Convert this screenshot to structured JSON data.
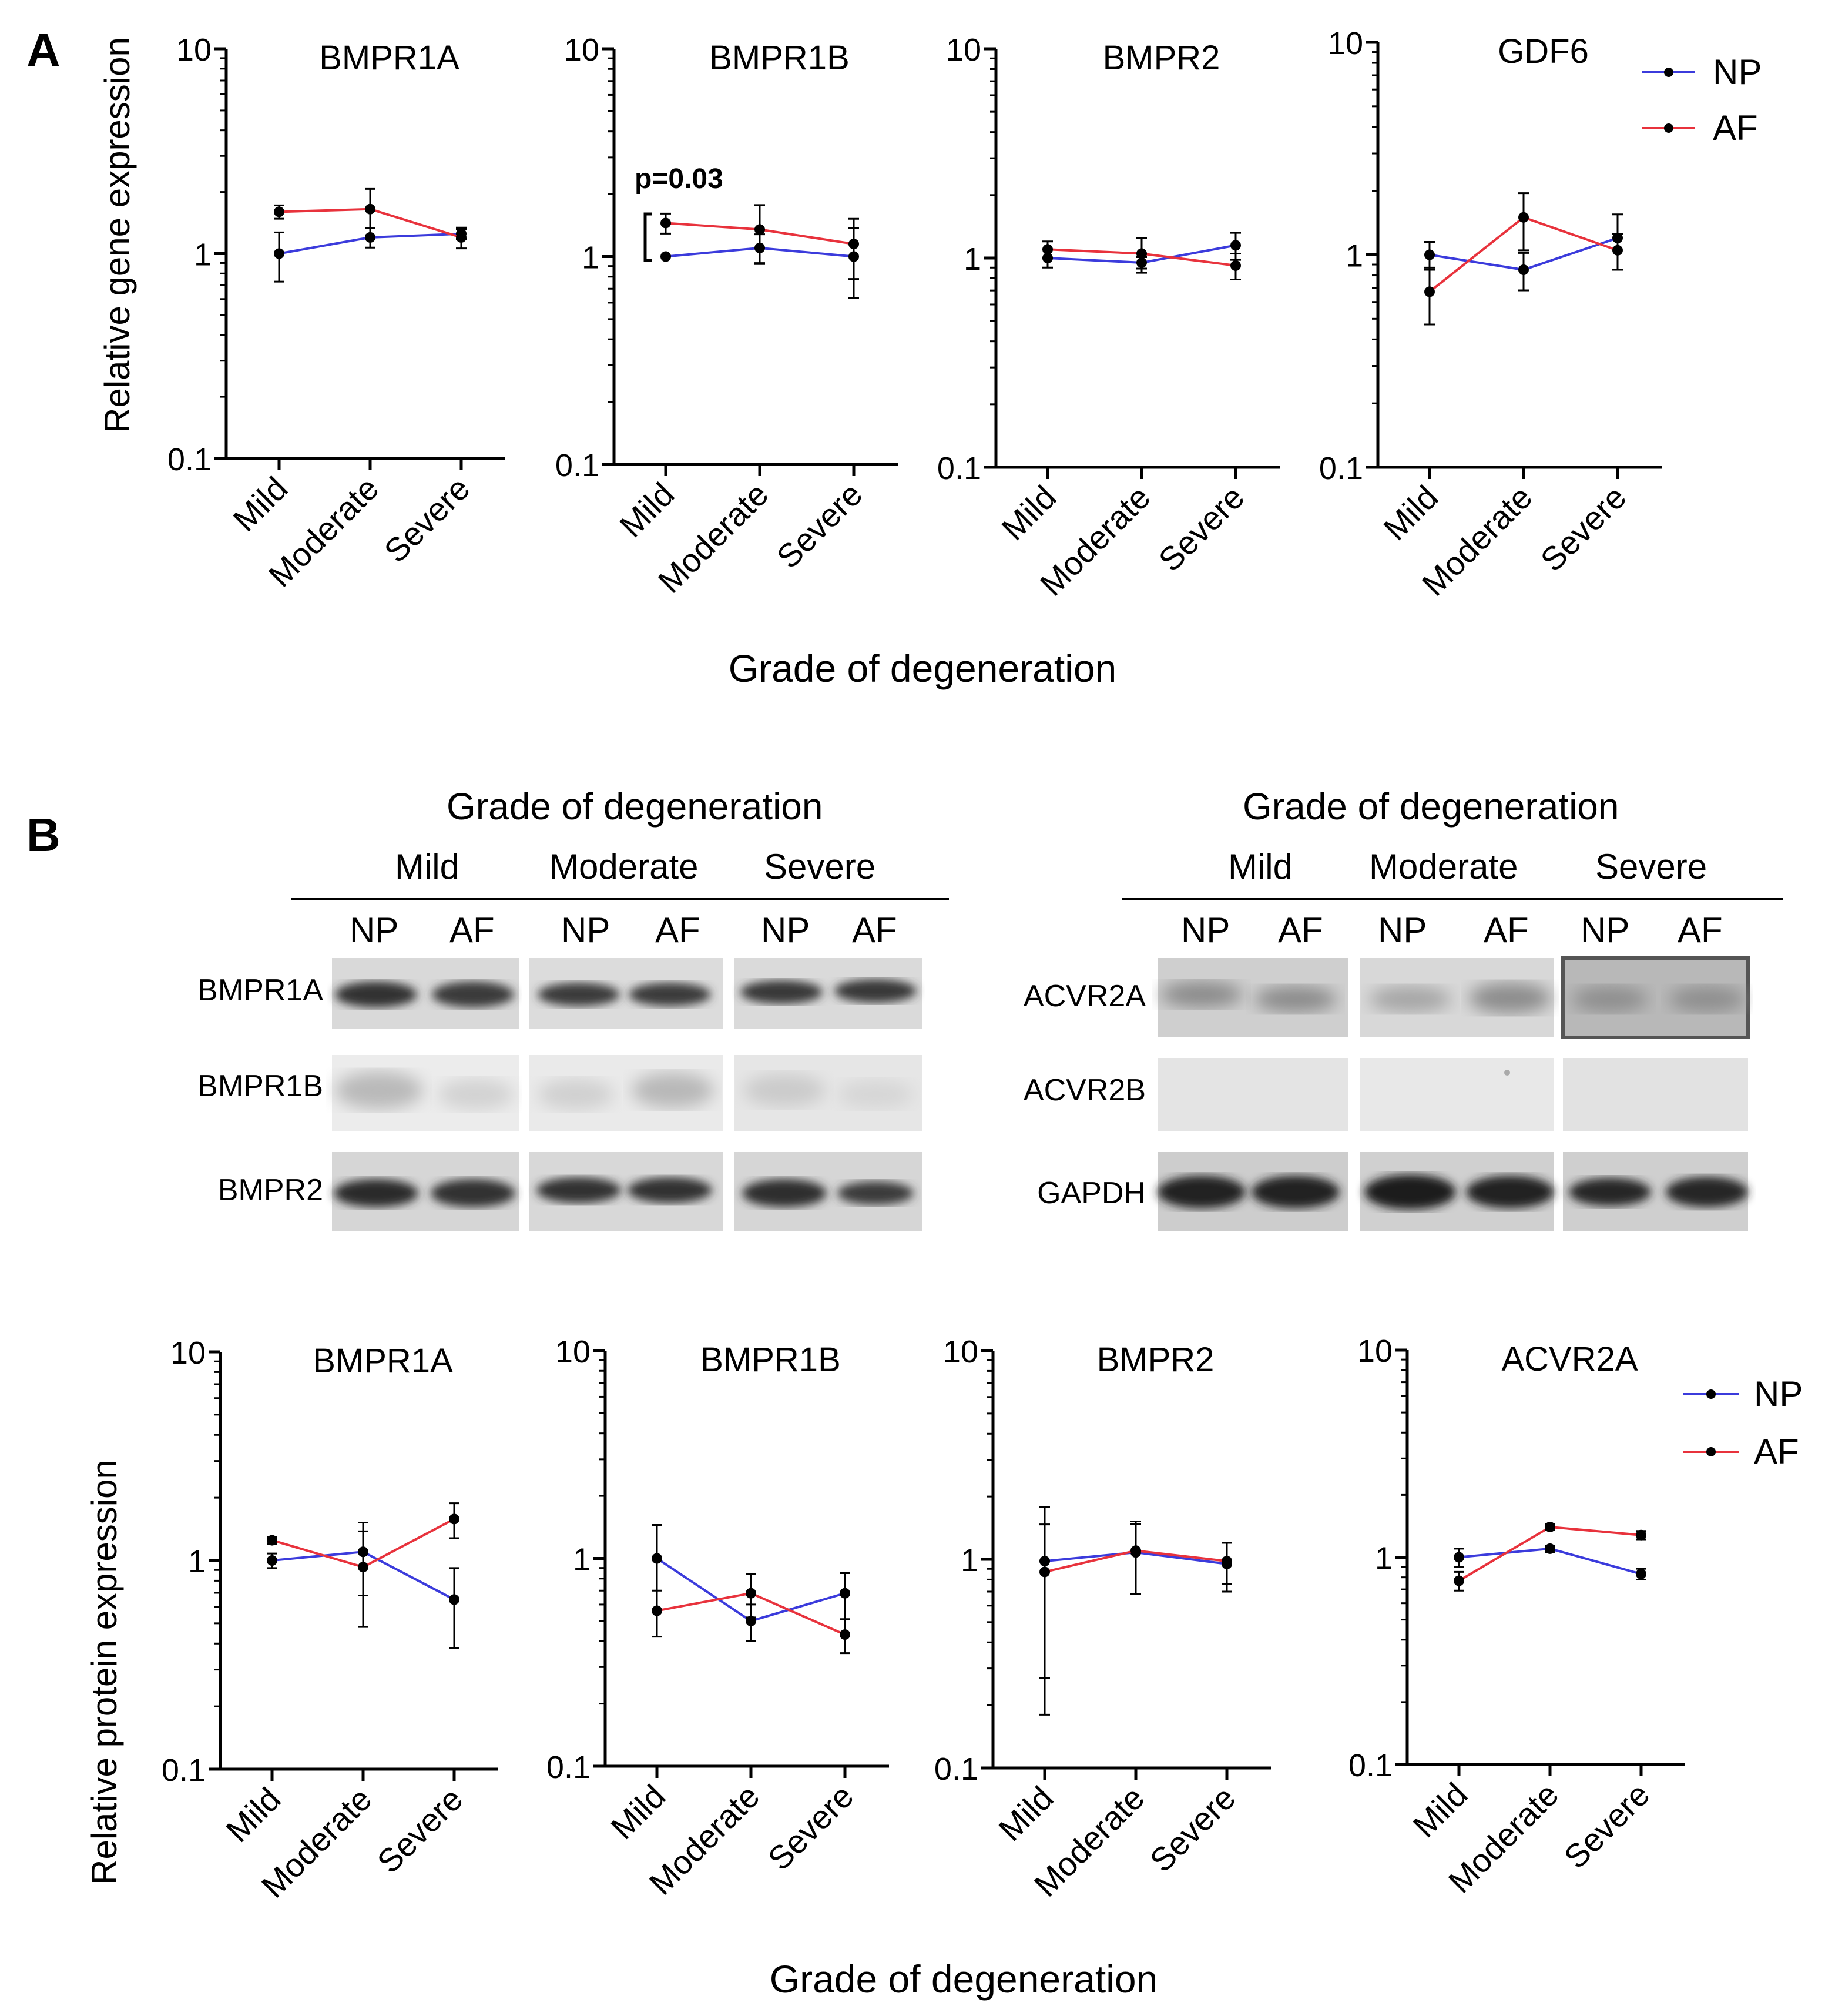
{
  "panel_labels": {
    "a": "A",
    "b": "B"
  },
  "panel_a": {
    "ylabel": "Relative gene expression",
    "xlabel": "Grade of degeneration",
    "legend": [
      "NP",
      "AF"
    ],
    "annotation": "p=0.03"
  },
  "panel_b_blots": {
    "left": {
      "title": "Grade of degeneration",
      "grades": [
        "Mild",
        "Moderate",
        "Severe"
      ],
      "lanes": [
        "NP",
        "AF",
        "NP",
        "AF",
        "NP",
        "AF"
      ],
      "rows": [
        "BMPR1A",
        "BMPR1B",
        "BMPR2"
      ]
    },
    "right": {
      "title": "Grade of degeneration",
      "grades": [
        "Mild",
        "Moderate",
        "Severe"
      ],
      "lanes": [
        "NP",
        "AF",
        "NP",
        "AF",
        "NP",
        "AF"
      ],
      "rows": [
        "ACVR2A",
        "ACVR2B",
        "GAPDH"
      ]
    }
  },
  "panel_b_charts": {
    "ylabel": "Relative protein expression",
    "xlabel": "Grade of degeneration",
    "legend": [
      "NP",
      "AF"
    ]
  },
  "colors": {
    "np": "#3b3bdc",
    "af": "#e8323c"
  },
  "chart_data": [
    {
      "type": "line",
      "title": "BMPR1A",
      "yscale": "log",
      "ylim": [
        0.1,
        10
      ],
      "ytick_labels": [
        "0.1",
        "1",
        "10"
      ],
      "categories": [
        "Mild",
        "Moderate",
        "Severe"
      ],
      "series": [
        {
          "name": "NP",
          "values": [
            1.0,
            1.2,
            1.25
          ],
          "err": [
            0.27,
            0.13,
            0.07
          ]
        },
        {
          "name": "AF",
          "values": [
            1.6,
            1.65,
            1.2
          ],
          "err": [
            0.12,
            0.42,
            0.14
          ]
        }
      ]
    },
    {
      "type": "line",
      "title": "BMPR1B",
      "yscale": "log",
      "ylim": [
        0.1,
        10
      ],
      "ytick_labels": [
        "0.1",
        "1",
        "10"
      ],
      "categories": [
        "Mild",
        "Moderate",
        "Severe"
      ],
      "series": [
        {
          "name": "NP",
          "values": [
            1.0,
            1.1,
            1.0
          ],
          "err": [
            0.0,
            0.18,
            0.37
          ]
        },
        {
          "name": "AF",
          "values": [
            1.45,
            1.35,
            1.15
          ],
          "err": [
            0.16,
            0.42,
            0.37
          ]
        }
      ]
    },
    {
      "type": "line",
      "title": "BMPR2",
      "yscale": "log",
      "ylim": [
        0.1,
        10
      ],
      "ytick_labels": [
        "0.1",
        "1",
        "10"
      ],
      "categories": [
        "Mild",
        "Moderate",
        "Severe"
      ],
      "series": [
        {
          "name": "NP",
          "values": [
            1.0,
            0.95,
            1.15
          ],
          "err": [
            0.1,
            0.06,
            0.17
          ]
        },
        {
          "name": "AF",
          "values": [
            1.1,
            1.05,
            0.92
          ],
          "err": [
            0.1,
            0.2,
            0.13
          ]
        }
      ]
    },
    {
      "type": "line",
      "title": "GDF6",
      "yscale": "log",
      "ylim": [
        0.1,
        10
      ],
      "ytick_labels": [
        "0.1",
        "1",
        "10"
      ],
      "categories": [
        "Mild",
        "Moderate",
        "Severe"
      ],
      "series": [
        {
          "name": "NP",
          "values": [
            1.0,
            0.85,
            1.2
          ],
          "err": [
            0.15,
            0.17,
            0.35
          ]
        },
        {
          "name": "AF",
          "values": [
            0.67,
            1.5,
            1.05
          ],
          "err": [
            0.2,
            0.45,
            0.2
          ]
        }
      ]
    },
    {
      "type": "line",
      "title": "BMPR1A",
      "yscale": "log",
      "ylim": [
        0.1,
        10
      ],
      "ytick_labels": [
        "0.1",
        "1",
        "10"
      ],
      "categories": [
        "Mild",
        "Moderate",
        "Severe"
      ],
      "series": [
        {
          "name": "NP",
          "values": [
            1.0,
            1.1,
            0.65
          ],
          "err": [
            0.08,
            0.42,
            0.27
          ]
        },
        {
          "name": "AF",
          "values": [
            1.25,
            0.93,
            1.58
          ],
          "err": [
            0.05,
            0.45,
            0.3
          ]
        }
      ]
    },
    {
      "type": "line",
      "title": "BMPR1B",
      "yscale": "log",
      "ylim": [
        0.1,
        10
      ],
      "ytick_labels": [
        "0.1",
        "1",
        "10"
      ],
      "categories": [
        "Mild",
        "Moderate",
        "Severe"
      ],
      "series": [
        {
          "name": "NP",
          "values": [
            1.0,
            0.5,
            0.68
          ],
          "err": [
            0.45,
            0.1,
            0.17
          ]
        },
        {
          "name": "AF",
          "values": [
            0.56,
            0.68,
            0.43
          ],
          "err": [
            0.14,
            0.16,
            0.08
          ]
        }
      ]
    },
    {
      "type": "line",
      "title": "BMPR2",
      "yscale": "log",
      "ylim": [
        0.1,
        10
      ],
      "ytick_labels": [
        "0.1",
        "1",
        "10"
      ],
      "categories": [
        "Mild",
        "Moderate",
        "Severe"
      ],
      "series": [
        {
          "name": "NP",
          "values": [
            0.98,
            1.08,
            0.95
          ],
          "err": [
            0.8,
            0.4,
            0.25
          ]
        },
        {
          "name": "AF",
          "values": [
            0.87,
            1.1,
            0.98
          ],
          "err": [
            0.6,
            0.42,
            0.22
          ]
        }
      ]
    },
    {
      "type": "line",
      "title": "ACVR2A",
      "yscale": "log",
      "ylim": [
        0.1,
        10
      ],
      "ytick_labels": [
        "0.1",
        "1",
        "10"
      ],
      "categories": [
        "Mild",
        "Moderate",
        "Severe"
      ],
      "series": [
        {
          "name": "NP",
          "values": [
            1.0,
            1.1,
            0.83
          ],
          "err": [
            0.1,
            0.04,
            0.05
          ]
        },
        {
          "name": "AF",
          "values": [
            0.77,
            1.4,
            1.28
          ],
          "err": [
            0.08,
            0.05,
            0.06
          ]
        }
      ]
    }
  ]
}
